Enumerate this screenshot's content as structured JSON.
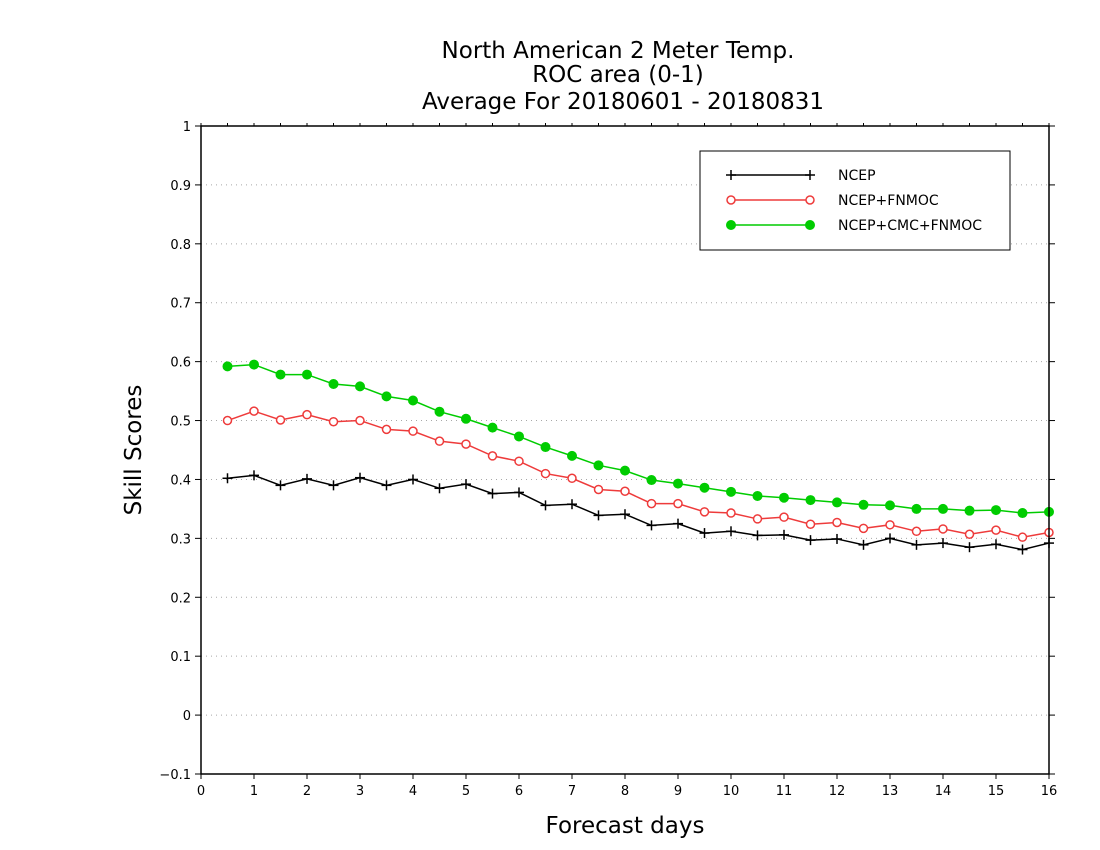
{
  "chart_data": {
    "type": "line",
    "title": [
      "North American 2 Meter Temp.",
      "ROC area (0-1)",
      "Average For 20180601 - 20180831"
    ],
    "xlabel": "Forecast days",
    "ylabel": "Skill Scores",
    "xlim": [
      0,
      16
    ],
    "ylim": [
      -0.1,
      1
    ],
    "x_ticks": [
      0,
      1,
      2,
      3,
      4,
      5,
      6,
      7,
      8,
      9,
      10,
      11,
      12,
      13,
      14,
      15,
      16
    ],
    "x_tick_labels": [
      "0",
      "1",
      "2",
      "3",
      "4",
      "5",
      "6",
      "7",
      "8",
      "9",
      "10",
      "11",
      "12",
      "13",
      "14",
      "15",
      "16"
    ],
    "y_ticks": [
      -0.1,
      0,
      0.1,
      0.2,
      0.3,
      0.4,
      0.5,
      0.6,
      0.7,
      0.8,
      0.9,
      1
    ],
    "y_tick_labels": [
      "−0.1",
      "0",
      "0.1",
      "0.2",
      "0.3",
      "0.4",
      "0.5",
      "0.6",
      "0.7",
      "0.8",
      "0.9",
      "1"
    ],
    "grid": "horizontal dotted",
    "legend_position": "top-right",
    "x": [
      0.5,
      1,
      1.5,
      2,
      2.5,
      3,
      3.5,
      4,
      4.5,
      5,
      5.5,
      6,
      6.5,
      7,
      7.5,
      8,
      8.5,
      9,
      9.5,
      10,
      10.5,
      11,
      11.5,
      12,
      12.5,
      13,
      13.5,
      14,
      14.5,
      15,
      15.5,
      16
    ],
    "series": [
      {
        "name": "NCEP",
        "color": "#000000",
        "marker": "plus",
        "values": [
          0.402,
          0.407,
          0.39,
          0.401,
          0.39,
          0.403,
          0.39,
          0.4,
          0.385,
          0.392,
          0.376,
          0.378,
          0.356,
          0.358,
          0.339,
          0.341,
          0.322,
          0.325,
          0.309,
          0.312,
          0.305,
          0.306,
          0.297,
          0.299,
          0.289,
          0.3,
          0.289,
          0.292,
          0.285,
          0.29,
          0.281,
          0.292
        ]
      },
      {
        "name": "NCEP+FNMOC",
        "color": "#ee3b3b",
        "marker": "open-circle",
        "values": [
          0.5,
          0.516,
          0.501,
          0.51,
          0.498,
          0.5,
          0.485,
          0.482,
          0.465,
          0.46,
          0.44,
          0.431,
          0.41,
          0.402,
          0.383,
          0.38,
          0.359,
          0.359,
          0.345,
          0.343,
          0.333,
          0.336,
          0.324,
          0.327,
          0.317,
          0.323,
          0.312,
          0.316,
          0.307,
          0.314,
          0.302,
          0.31
        ]
      },
      {
        "name": "NCEP+CMC+FNMOC",
        "color": "#00cc00",
        "marker": "filled-circle",
        "values": [
          0.592,
          0.595,
          0.578,
          0.578,
          0.562,
          0.558,
          0.541,
          0.534,
          0.515,
          0.503,
          0.488,
          0.473,
          0.455,
          0.44,
          0.424,
          0.415,
          0.399,
          0.393,
          0.386,
          0.379,
          0.372,
          0.369,
          0.365,
          0.361,
          0.357,
          0.356,
          0.35,
          0.35,
          0.347,
          0.348,
          0.343,
          0.345
        ]
      }
    ]
  }
}
